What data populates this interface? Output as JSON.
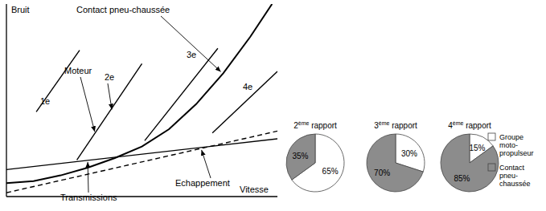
{
  "chart_data": [
    {
      "type": "line",
      "xlabel": "Vitesse",
      "ylabel": "Bruit",
      "xlim": [
        0,
        100
      ],
      "ylim": [
        0,
        100
      ],
      "tick_labels": false,
      "grid": false,
      "series": [
        {
          "name": "Contact pneu-chaussée",
          "color": "#000000",
          "line_style": "solid",
          "x": [
            0,
            10,
            20,
            30,
            40,
            50,
            60,
            70,
            80,
            90,
            98
          ],
          "values": [
            7,
            8,
            11,
            15,
            20,
            26,
            35,
            48,
            64,
            83,
            100
          ]
        },
        {
          "name": "1e",
          "color": "#000000",
          "line_style": "solid",
          "x": [
            11,
            27
          ],
          "values": [
            44,
            76
          ]
        },
        {
          "name": "2e",
          "color": "#000000",
          "line_style": "solid",
          "x": [
            26,
            50
          ],
          "values": [
            19,
            69
          ]
        },
        {
          "name": "3e",
          "color": "#000000",
          "line_style": "solid",
          "x": [
            51,
            78
          ],
          "values": [
            29,
            77
          ]
        },
        {
          "name": "4e",
          "color": "#000000",
          "line_style": "solid",
          "x": [
            76,
            100
          ],
          "values": [
            33,
            65
          ]
        },
        {
          "name": "Transmissions",
          "color": "#000000",
          "line_style": "solid",
          "x": [
            0,
            100
          ],
          "values": [
            14,
            30
          ]
        },
        {
          "name": "Echappement",
          "color": "#000000",
          "line_style": "dashed",
          "x": [
            0,
            100
          ],
          "values": [
            2,
            34
          ]
        }
      ],
      "annotations": [
        "Moteur"
      ]
    },
    {
      "type": "pie",
      "legend": "right",
      "data_labels": true,
      "categories": [
        "Groupe moto-propulseur",
        "Contact pneu-chaussée"
      ],
      "colors": [
        "#ffffff",
        "#8c8c8c"
      ],
      "series": [
        {
          "name": "2ème rapport",
          "values": [
            65,
            35
          ],
          "value_labels": [
            "65%",
            "35%"
          ]
        },
        {
          "name": "3ème rapport",
          "values": [
            30,
            70
          ],
          "value_labels": [
            "30%",
            "70%"
          ]
        },
        {
          "name": "4ème rapport",
          "values": [
            15,
            85
          ],
          "value_labels": [
            "15%",
            "85%"
          ]
        }
      ]
    }
  ]
}
